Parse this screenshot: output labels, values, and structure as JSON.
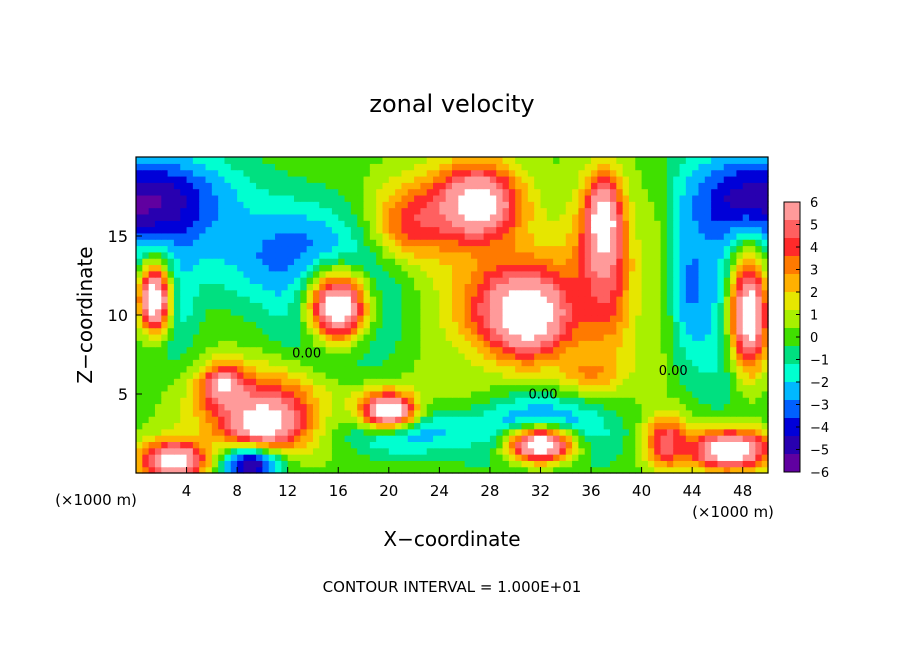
{
  "chart_data": {
    "type": "heatmap",
    "title": "zonal velocity",
    "xlabel": "X−coordinate",
    "ylabel": "Z−coordinate",
    "x_unit_left": "(×1000 m)",
    "x_unit_right": "(×1000 m)",
    "footer": "CONTOUR INTERVAL = 1.000E+01",
    "xlim": [
      0,
      50
    ],
    "ylim": [
      0,
      20
    ],
    "x_ticks": [
      4,
      8,
      12,
      16,
      20,
      24,
      28,
      32,
      36,
      40,
      44,
      48
    ],
    "y_ticks": [
      5,
      10,
      15
    ],
    "contour_labels": [
      {
        "text": "0.00",
        "x": 13.5,
        "y": 7.3
      },
      {
        "text": "0.00",
        "x": 32.2,
        "y": 4.7
      },
      {
        "text": "0.00",
        "x": 42.5,
        "y": 6.2
      }
    ],
    "colorbar": {
      "min": -6,
      "max": 6,
      "tick_labels": [
        "6",
        "5",
        "4",
        "3",
        "2",
        "1",
        "0",
        "−1",
        "−2",
        "−3",
        "−4",
        "−5",
        "−6"
      ],
      "colors": [
        "#ff9a9a",
        "#ff6060",
        "#ff2a2a",
        "#ff7a00",
        "#ffb000",
        "#e6e600",
        "#a8f000",
        "#40e000",
        "#00e080",
        "#00ffd0",
        "#00b8ff",
        "#0060ff",
        "#0000d8",
        "#2800b0",
        "#6000a0"
      ]
    },
    "regions": [
      {
        "x": 25,
        "y": 10,
        "rx": 30,
        "ry": 14,
        "v": 0.5
      },
      {
        "x": 1,
        "y": 17,
        "rx": 8,
        "ry": 4,
        "v": -5.5
      },
      {
        "x": 49,
        "y": 17,
        "rx": 7,
        "ry": 4,
        "v": -5.5
      },
      {
        "x": 12,
        "y": 14,
        "rx": 8,
        "ry": 4,
        "v": -3
      },
      {
        "x": 16,
        "y": 10.5,
        "rx": 5,
        "ry": 4.5,
        "v": -5
      },
      {
        "x": 16,
        "y": 10.5,
        "rx": 3.2,
        "ry": 3,
        "v": 8
      },
      {
        "x": 2,
        "y": 11,
        "rx": 2.5,
        "ry": 4,
        "v": -5
      },
      {
        "x": 1.5,
        "y": 11,
        "rx": 1.8,
        "ry": 3,
        "v": 8
      },
      {
        "x": 48,
        "y": 10,
        "rx": 3.5,
        "ry": 6,
        "v": -5
      },
      {
        "x": 48.5,
        "y": 10,
        "rx": 2.2,
        "ry": 5,
        "v": 8
      },
      {
        "x": 22,
        "y": 16,
        "rx": 4,
        "ry": 3,
        "v": 4
      },
      {
        "x": 27,
        "y": 17,
        "rx": 4,
        "ry": 3,
        "v": 8
      },
      {
        "x": 30,
        "y": 11,
        "rx": 6,
        "ry": 4,
        "v": 4
      },
      {
        "x": 31,
        "y": 10,
        "rx": 4,
        "ry": 3,
        "v": 8
      },
      {
        "x": 37,
        "y": 13,
        "rx": 3,
        "ry": 6,
        "v": 5
      },
      {
        "x": 37,
        "y": 16,
        "rx": 1.5,
        "ry": 3,
        "v": 8
      },
      {
        "x": 41,
        "y": 12,
        "rx": 2,
        "ry": 8,
        "v": 1
      },
      {
        "x": 44,
        "y": 12,
        "rx": 2,
        "ry": 6,
        "v": -3
      },
      {
        "x": 10,
        "y": 4,
        "rx": 6,
        "ry": 3,
        "v": 5
      },
      {
        "x": 10,
        "y": 3,
        "rx": 3,
        "ry": 1.8,
        "v": 8
      },
      {
        "x": 7,
        "y": 5.5,
        "rx": 2,
        "ry": 1.5,
        "v": 7
      },
      {
        "x": 21,
        "y": 3,
        "rx": 5,
        "ry": 2,
        "v": -4
      },
      {
        "x": 20,
        "y": 4,
        "rx": 3,
        "ry": 1.5,
        "v": 8
      },
      {
        "x": 32,
        "y": 2.5,
        "rx": 6,
        "ry": 2.5,
        "v": -5
      },
      {
        "x": 32,
        "y": 1.8,
        "rx": 3.5,
        "ry": 1.5,
        "v": 8
      },
      {
        "x": 9,
        "y": 0.5,
        "rx": 3,
        "ry": 1.5,
        "v": -5
      },
      {
        "x": 3,
        "y": 0.8,
        "rx": 3,
        "ry": 1.5,
        "v": 8
      },
      {
        "x": 47,
        "y": 1.5,
        "rx": 4,
        "ry": 1.5,
        "v": 8
      },
      {
        "x": 42,
        "y": 2,
        "rx": 2,
        "ry": 2,
        "v": 5
      },
      {
        "x": 25,
        "y": 6,
        "rx": 3,
        "ry": 2,
        "v": 1
      },
      {
        "x": 36,
        "y": 6.5,
        "rx": 3,
        "ry": 1.5,
        "v": 3
      }
    ]
  }
}
